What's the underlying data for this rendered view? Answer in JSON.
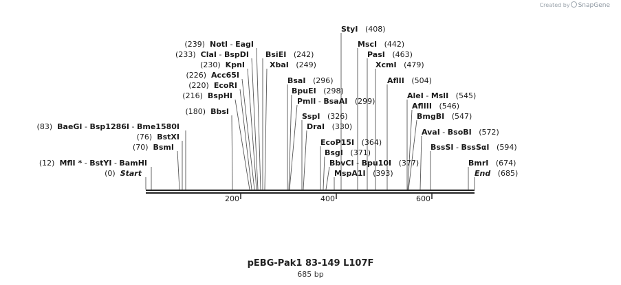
{
  "watermark": {
    "prefix": "Created by",
    "brand": "SnapGene"
  },
  "title": "pEBG-Pak1 83-149 L107F",
  "subtitle": "685 bp",
  "ruler": {
    "ticks": [
      "200",
      "400",
      "600"
    ]
  },
  "features": [
    {
      "id": "styi",
      "names": [
        "StyI"
      ],
      "pos": "(408)"
    },
    {
      "id": "msci",
      "names": [
        "MscI"
      ],
      "pos": "(442)"
    },
    {
      "id": "pasi",
      "names": [
        "PasI"
      ],
      "pos": "(463)"
    },
    {
      "id": "xcmi",
      "names": [
        "XcmI"
      ],
      "pos": "(479)"
    },
    {
      "id": "aflii",
      "names": [
        "AflII"
      ],
      "pos": "(504)"
    },
    {
      "id": "alei",
      "names": [
        "AleI",
        "MslI"
      ],
      "pos": "(545)"
    },
    {
      "id": "afliii",
      "names": [
        "AflIII"
      ],
      "pos": "(546)"
    },
    {
      "id": "bmgbi",
      "names": [
        "BmgBI"
      ],
      "pos": "(547)"
    },
    {
      "id": "avai",
      "names": [
        "AvaI",
        "BsoBI"
      ],
      "pos": "(572)"
    },
    {
      "id": "bsssi",
      "names": [
        "BssSI",
        "BssSαI"
      ],
      "pos": "(594)"
    },
    {
      "id": "bmri",
      "names": [
        "BmrI"
      ],
      "pos": "(674)"
    },
    {
      "id": "end",
      "names": [
        "End"
      ],
      "pos": "(685)"
    },
    {
      "id": "noti",
      "names": [
        "NotI",
        "EagI"
      ],
      "pos": "(239)"
    },
    {
      "id": "clai",
      "names": [
        "ClaI",
        "BspDI"
      ],
      "pos": "(233)"
    },
    {
      "id": "kpni",
      "names": [
        "KpnI"
      ],
      "pos": "(230)"
    },
    {
      "id": "acc65i",
      "names": [
        "Acc65I"
      ],
      "pos": "(226)"
    },
    {
      "id": "ecori",
      "names": [
        "EcoRI"
      ],
      "pos": "(220)"
    },
    {
      "id": "bsphi",
      "names": [
        "BspHI"
      ],
      "pos": "(216)"
    },
    {
      "id": "bbsi",
      "names": [
        "BbsI"
      ],
      "pos": "(180)"
    },
    {
      "id": "baegi",
      "names": [
        "BaeGI",
        "Bsp1286I",
        "Bme1580I"
      ],
      "pos": "(83)"
    },
    {
      "id": "bstxi",
      "names": [
        "BstXI"
      ],
      "pos": "(76)"
    },
    {
      "id": "bsmi",
      "names": [
        "BsmI"
      ],
      "pos": "(70)"
    },
    {
      "id": "mfli",
      "names": [
        "MflI *",
        "BstYI",
        "BamHI"
      ],
      "pos": "(12)"
    },
    {
      "id": "start",
      "names": [
        "Start"
      ],
      "pos": "(0)"
    },
    {
      "id": "bsiei",
      "names": [
        "BsiEI"
      ],
      "pos": "(242)"
    },
    {
      "id": "xbai",
      "names": [
        "XbaI"
      ],
      "pos": "(249)"
    },
    {
      "id": "bsai",
      "names": [
        "BsaI"
      ],
      "pos": "(296)"
    },
    {
      "id": "bpuei",
      "names": [
        "BpuEI"
      ],
      "pos": "(298)"
    },
    {
      "id": "pmli",
      "names": [
        "PmlI",
        "BsaAI"
      ],
      "pos": "(299)"
    },
    {
      "id": "sspi",
      "names": [
        "SspI"
      ],
      "pos": "(326)"
    },
    {
      "id": "drai",
      "names": [
        "DraI"
      ],
      "pos": "(330)"
    },
    {
      "id": "ecop15i",
      "names": [
        "EcoP15I"
      ],
      "pos": "(364)"
    },
    {
      "id": "bsgi",
      "names": [
        "BsgI"
      ],
      "pos": "(371)"
    },
    {
      "id": "bbvci",
      "names": [
        "BbvCI",
        "Bpu10I"
      ],
      "pos": "(377)"
    },
    {
      "id": "mspa1i",
      "names": [
        "MspA1I"
      ],
      "pos": "(393)"
    }
  ]
}
